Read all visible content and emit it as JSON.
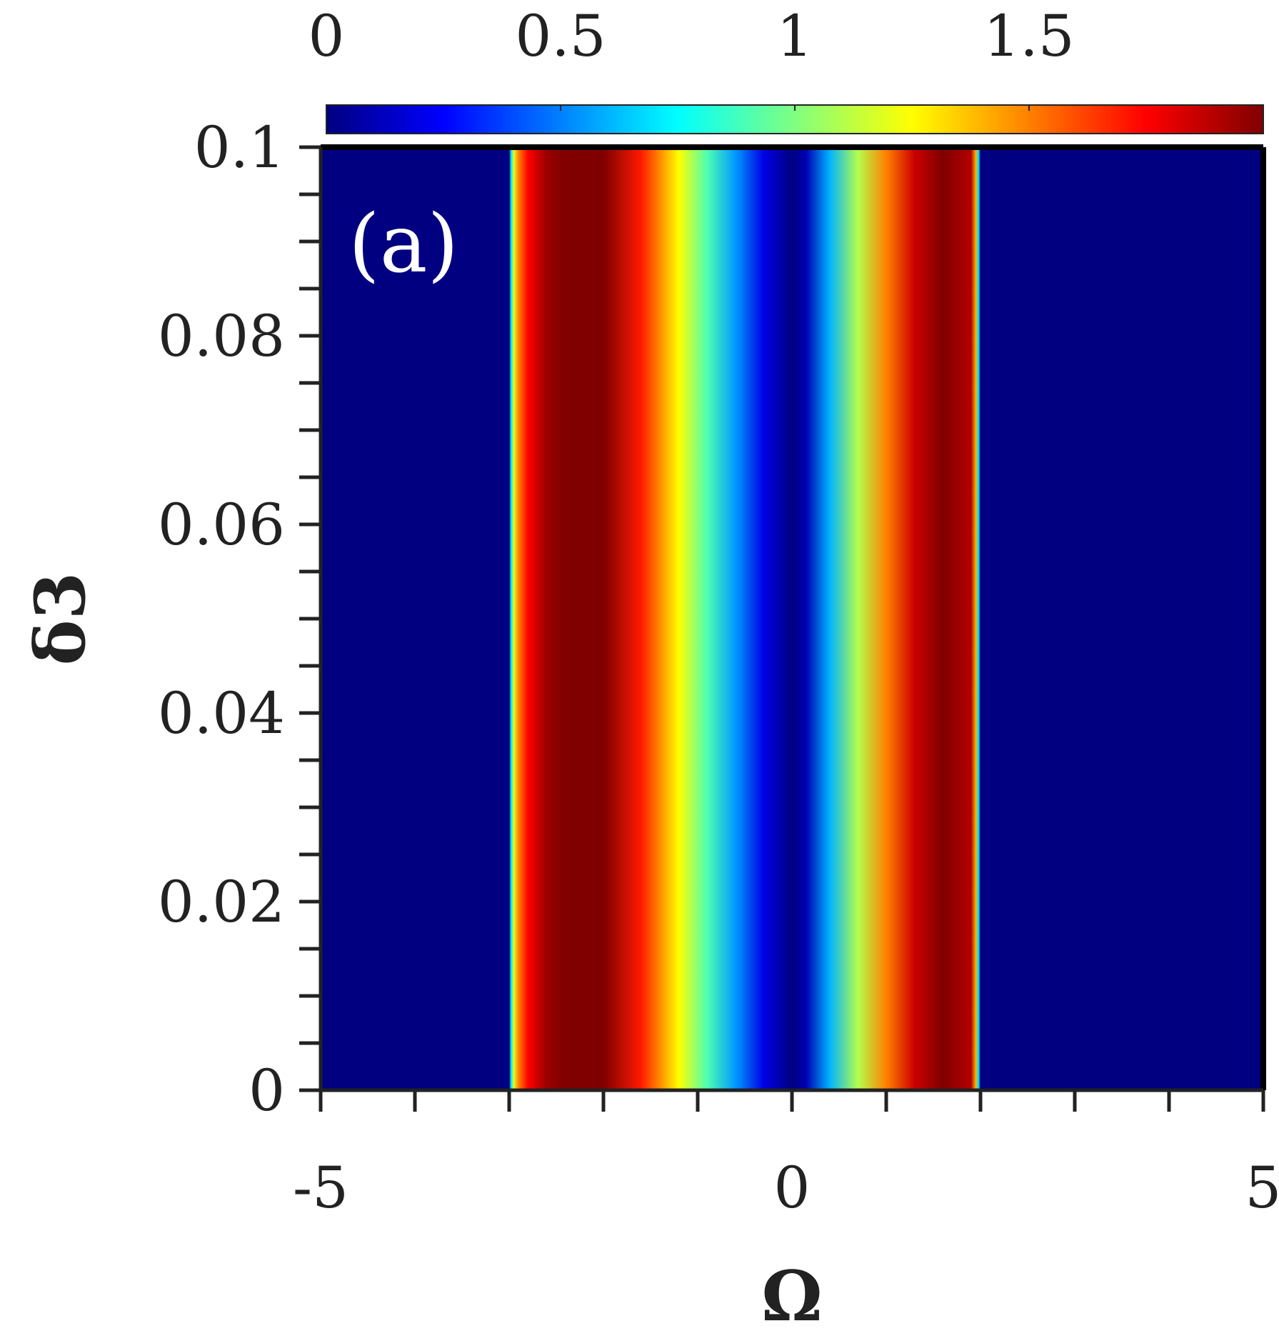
{
  "chart_data": {
    "type": "heatmap",
    "panel_label": "(a)",
    "xlabel": "Ω",
    "ylabel": "δ3",
    "xlim": [
      -5,
      5
    ],
    "ylim": [
      0,
      0.1
    ],
    "x_ticks": [
      -5,
      0,
      5
    ],
    "x_tick_labels": [
      "-5",
      "0",
      "5"
    ],
    "y_ticks": [
      0,
      0.02,
      0.04,
      0.06,
      0.08,
      0.1
    ],
    "y_tick_labels": [
      "0",
      "0.02",
      "0.04",
      "0.06",
      "0.08",
      "0.1"
    ],
    "colorbar": {
      "colormap": "jet",
      "range": [
        0,
        2
      ],
      "ticks": [
        0,
        0.5,
        1,
        1.5
      ],
      "tick_labels": [
        "0",
        "0.5",
        "1",
        "1.5"
      ],
      "location": "top"
    },
    "description_values": {
      "note_independent_of_y": true,
      "omega": [
        -5,
        -3.0,
        -2.98,
        -2.95,
        -2.9,
        -2.8,
        -2.6,
        -2.4,
        -2.0,
        -1.6,
        -1.2,
        -0.9,
        -0.6,
        -0.3,
        0.0,
        0.15,
        0.4,
        0.7,
        1.0,
        1.3,
        1.6,
        1.9,
        1.95,
        1.98,
        2.0,
        5
      ],
      "value": [
        0.0,
        0.0,
        0.7,
        1.2,
        1.5,
        1.75,
        1.95,
        2.0,
        2.0,
        1.7,
        1.25,
        0.9,
        0.55,
        0.2,
        0.0,
        0.1,
        0.6,
        1.1,
        1.5,
        1.85,
        2.0,
        1.9,
        1.4,
        0.7,
        0.0,
        0.0
      ]
    },
    "grid": false
  },
  "colors": {
    "background": "#000080",
    "axis": "#222222",
    "text": "#222222",
    "panel_label": "#ffffff"
  }
}
